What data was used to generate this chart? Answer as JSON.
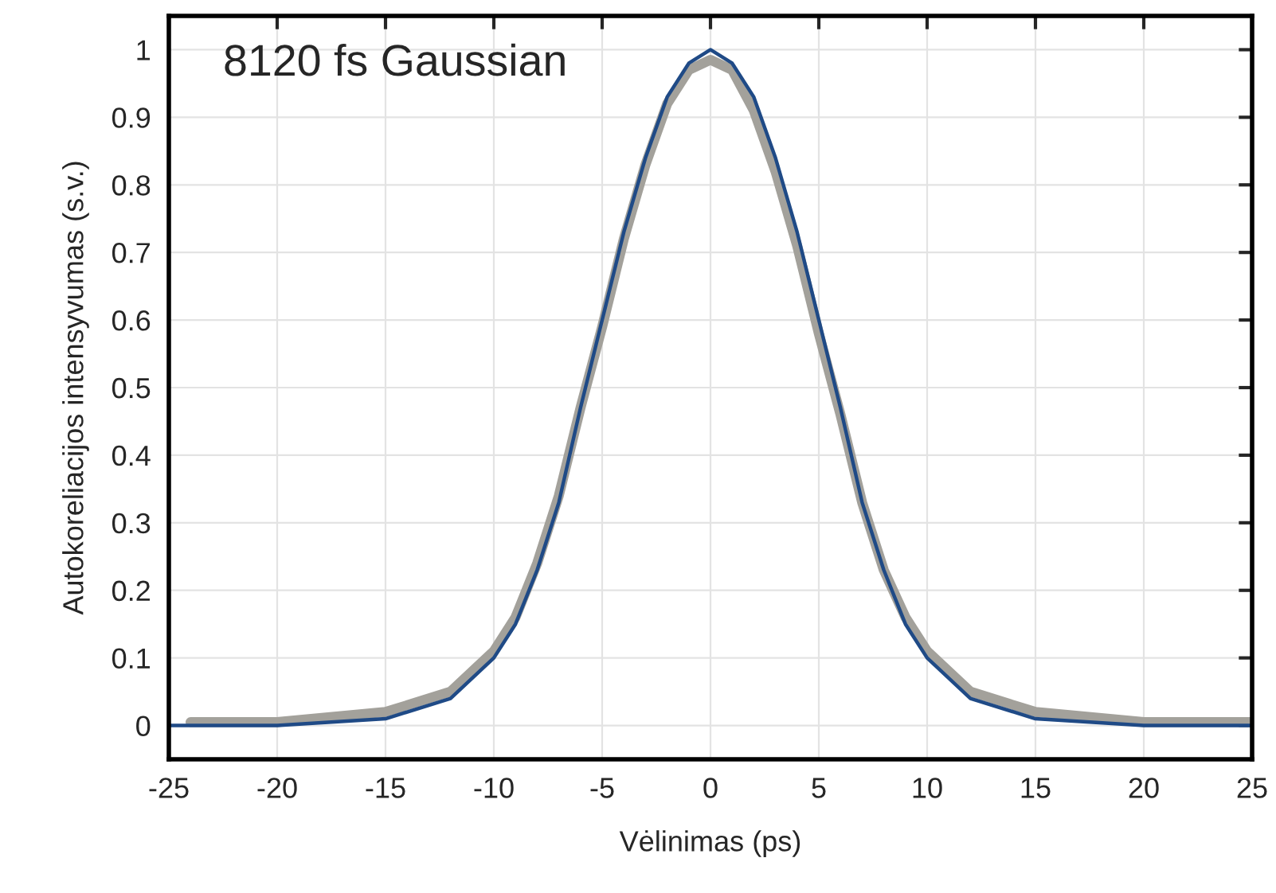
{
  "chart_data": {
    "type": "line",
    "xlabel": "Vėlinimas (ps)",
    "ylabel": "Autokoreliacijos intensyvumas (s.v.)",
    "annotations": [
      "8120 fs Gaussian"
    ],
    "xlim": [
      -25,
      25
    ],
    "xticks": [
      -25,
      -20,
      -15,
      -10,
      -5,
      0,
      5,
      10,
      15,
      20,
      25
    ],
    "ylim": [
      -0.05,
      1.05
    ],
    "yticks": [
      0,
      0.1,
      0.2,
      0.3,
      0.4,
      0.5,
      0.6,
      0.7,
      0.8,
      0.9,
      1
    ],
    "grid": true,
    "legend": false,
    "marker": "none",
    "line_style": "solid",
    "series": [
      {
        "color": "#a3a19b",
        "x": [
          -24,
          -20,
          -15,
          -12,
          -10,
          -9,
          -8,
          -7,
          -6,
          -5,
          -4,
          -3,
          -2,
          -1,
          0,
          1,
          2,
          3,
          4,
          5,
          6,
          7,
          8,
          9,
          10,
          12,
          15,
          20,
          25
        ],
        "values": [
          0.005,
          0.005,
          0.02,
          0.05,
          0.11,
          0.16,
          0.24,
          0.34,
          0.47,
          0.59,
          0.72,
          0.83,
          0.92,
          0.97,
          0.985,
          0.97,
          0.91,
          0.82,
          0.71,
          0.58,
          0.46,
          0.33,
          0.23,
          0.16,
          0.11,
          0.05,
          0.02,
          0.005,
          0.005
        ]
      },
      {
        "color": "#1f4a86",
        "x": [
          -25,
          -20,
          -15,
          -12,
          -10,
          -9,
          -8,
          -7,
          -6,
          -5,
          -4,
          -3,
          -2,
          -1,
          0,
          1,
          2,
          3,
          4,
          5,
          6,
          7,
          8,
          9,
          10,
          12,
          15,
          20,
          25
        ],
        "values": [
          0,
          0,
          0.01,
          0.04,
          0.1,
          0.15,
          0.23,
          0.33,
          0.47,
          0.6,
          0.73,
          0.84,
          0.93,
          0.98,
          1,
          0.98,
          0.93,
          0.84,
          0.73,
          0.6,
          0.47,
          0.33,
          0.23,
          0.15,
          0.1,
          0.04,
          0.01,
          0,
          0
        ]
      }
    ]
  }
}
